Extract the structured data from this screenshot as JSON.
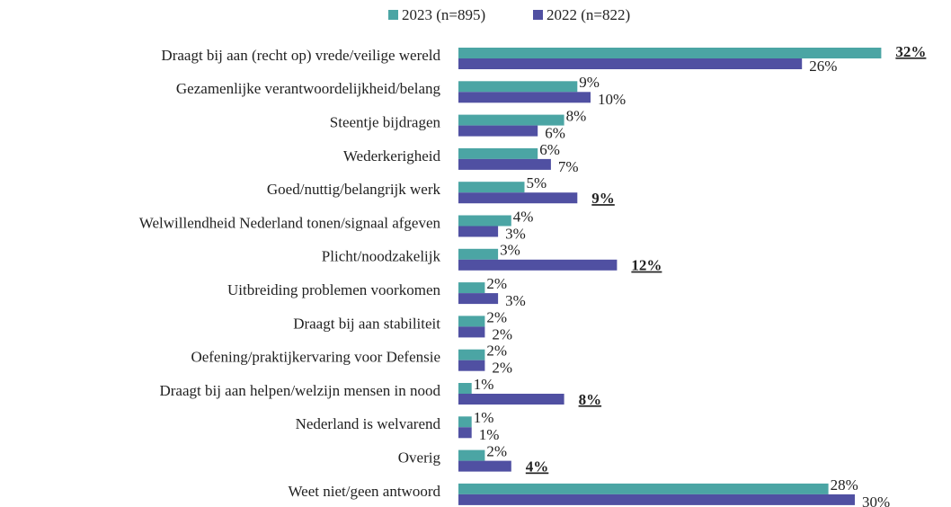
{
  "chart_data": {
    "type": "hbar",
    "categories": [
      "Draagt bij aan (recht op) vrede/veilige wereld",
      "Gezamenlijke verantwoordelijkheid/belang",
      "Steentje bijdragen",
      "Wederkerigheid",
      "Goed/nuttig/belangrijk werk",
      "Welwillendheid Nederland tonen/signaal afgeven",
      "Plicht/noodzakelijk",
      "Uitbreiding problemen voorkomen",
      "Draagt bij aan stabiliteit",
      "Oefening/praktijkervaring voor Defensie",
      "Draagt bij aan helpen/welzijn mensen in nood",
      "Nederland is welvarend",
      "Overig",
      "Weet niet/geen antwoord"
    ],
    "series": [
      {
        "name": "2023 (n=895)",
        "color": "#4ba5a4",
        "values": [
          32,
          9,
          8,
          6,
          5,
          4,
          3,
          2,
          2,
          2,
          1,
          1,
          2,
          28
        ],
        "value_labels": [
          "32%",
          "9%",
          "8%",
          "6%",
          "5%",
          "4%",
          "3%",
          "2%",
          "2%",
          "2%",
          "1%",
          "1%",
          "2%",
          "28%"
        ],
        "emphasized": [
          true,
          false,
          false,
          false,
          false,
          false,
          false,
          false,
          false,
          false,
          false,
          false,
          false,
          false
        ]
      },
      {
        "name": "2022 (n=822)",
        "color": "#5050a2",
        "values": [
          26,
          10,
          6,
          7,
          9,
          3,
          12,
          3,
          2,
          2,
          8,
          1,
          4,
          30
        ],
        "value_labels": [
          "26%",
          "10%",
          "6%",
          "7%",
          "9%",
          "3%",
          "12%",
          "3%",
          "2%",
          "2%",
          "8%",
          "1%",
          "4%",
          "30%"
        ],
        "emphasized": [
          false,
          false,
          false,
          false,
          true,
          false,
          true,
          false,
          false,
          false,
          true,
          false,
          true,
          false
        ]
      }
    ]
  }
}
